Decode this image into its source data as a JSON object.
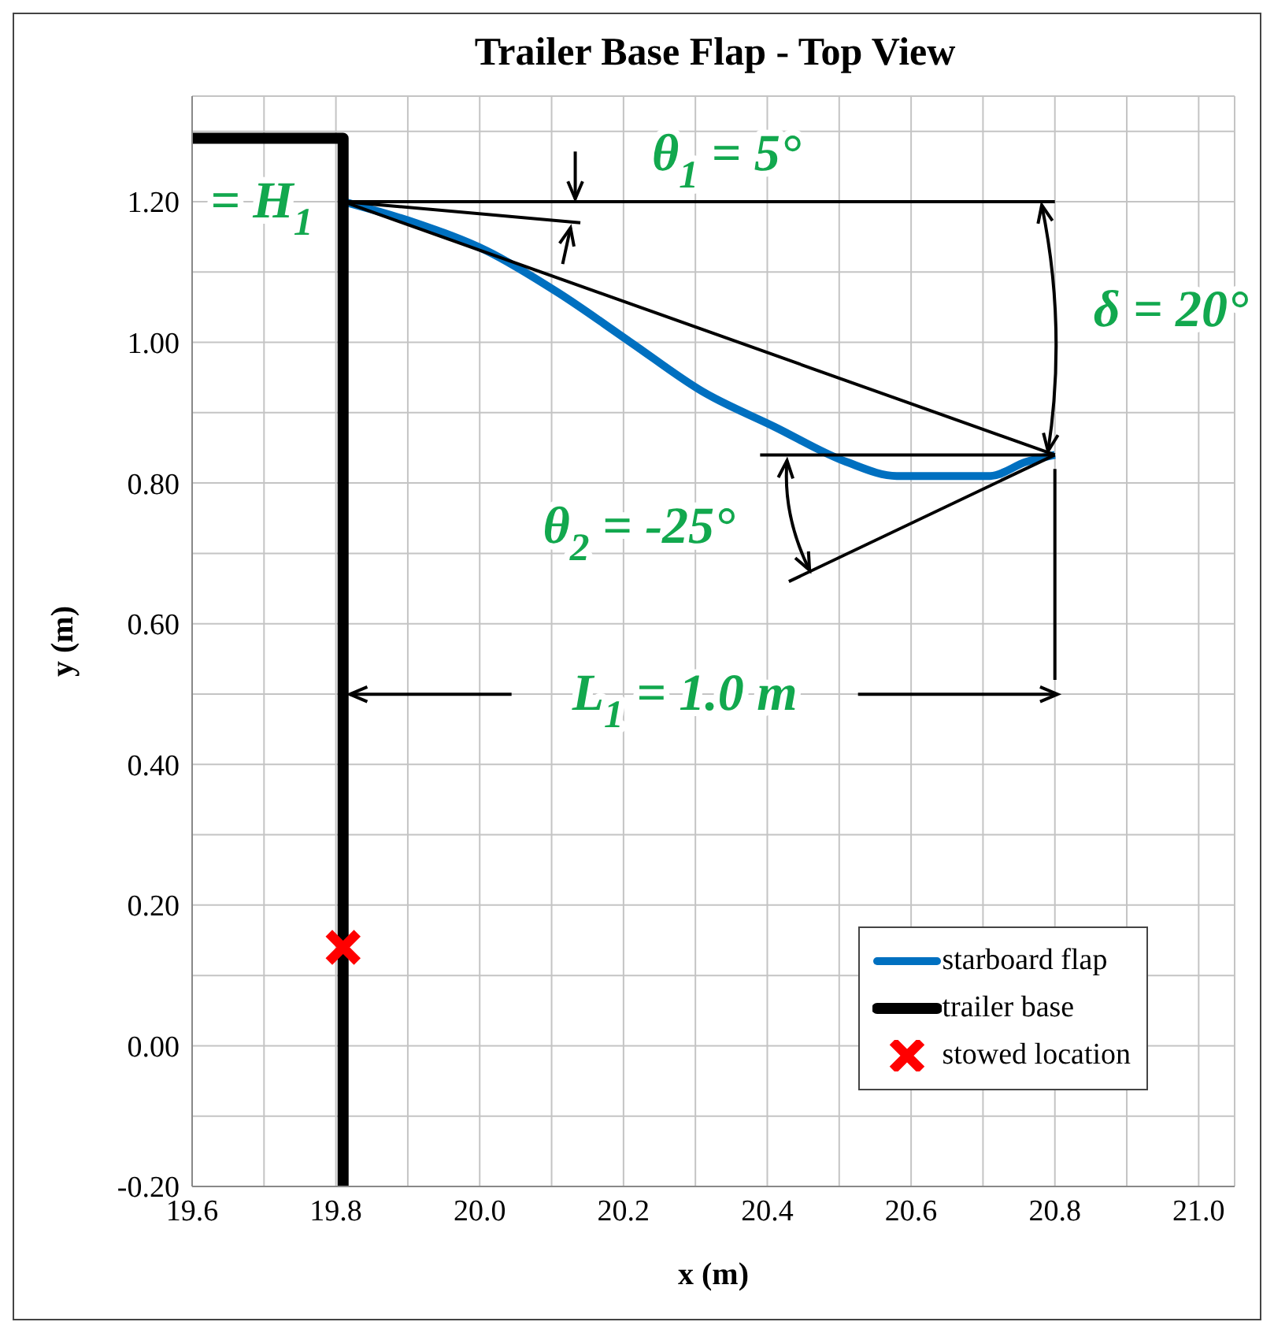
{
  "chart_data": {
    "type": "line",
    "title": "Trailer Base Flap - Top View",
    "xlabel": "x (m)",
    "ylabel": "y (m)",
    "xlim": [
      19.6,
      21.05
    ],
    "ylim": [
      -0.2,
      1.35
    ],
    "xticks": [
      {
        "value": 19.6,
        "label": "19.6"
      },
      {
        "value": 19.7,
        "label": null
      },
      {
        "value": 19.8,
        "label": "19.8"
      },
      {
        "value": 19.9,
        "label": null
      },
      {
        "value": 20.0,
        "label": "20.0"
      },
      {
        "value": 20.1,
        "label": null
      },
      {
        "value": 20.2,
        "label": "20.2"
      },
      {
        "value": 20.3,
        "label": null
      },
      {
        "value": 20.4,
        "label": "20.4"
      },
      {
        "value": 20.5,
        "label": null
      },
      {
        "value": 20.6,
        "label": "20.6"
      },
      {
        "value": 20.7,
        "label": null
      },
      {
        "value": 20.8,
        "label": "20.8"
      },
      {
        "value": 20.9,
        "label": null
      },
      {
        "value": 21.0,
        "label": "21.0"
      }
    ],
    "yticks": [
      {
        "value": -0.2,
        "label": "-0.20"
      },
      {
        "value": -0.1,
        "label": null
      },
      {
        "value": 0,
        "label": "0.00"
      },
      {
        "value": 0.1,
        "label": null
      },
      {
        "value": 0.2,
        "label": "0.20"
      },
      {
        "value": 0.3,
        "label": null
      },
      {
        "value": 0.4,
        "label": "0.40"
      },
      {
        "value": 0.5,
        "label": null
      },
      {
        "value": 0.6,
        "label": "0.60"
      },
      {
        "value": 0.7,
        "label": null
      },
      {
        "value": 0.8,
        "label": "0.80"
      },
      {
        "value": 0.9,
        "label": null
      },
      {
        "value": 1.0,
        "label": "1.00"
      },
      {
        "value": 1.1,
        "label": null
      },
      {
        "value": 1.2,
        "label": "1.20"
      },
      {
        "value": 1.3,
        "label": null
      }
    ],
    "grid": true,
    "legend": "bottom right",
    "series": [
      {
        "name": "starboard flap",
        "color": "#0070c0",
        "marker": "none",
        "x": [
          19.81,
          19.91,
          20.01,
          20.11,
          20.21,
          20.31,
          20.41,
          20.51,
          20.58,
          20.65,
          20.71,
          20.76,
          20.8
        ],
        "values": [
          1.2,
          1.17,
          1.13,
          1.07,
          1.0,
          0.93,
          0.88,
          0.83,
          0.81,
          0.81,
          0.81,
          0.83,
          0.84
        ]
      },
      {
        "name": "trailer base",
        "color": "#000000",
        "marker": "none",
        "x": [
          19.6,
          19.81,
          19.81
        ],
        "values": [
          1.29,
          1.29,
          -0.2
        ]
      },
      {
        "name": "stowed location",
        "type": "scatter",
        "color": "#ff0000",
        "marker": "cross",
        "x": [
          19.81
        ],
        "values": [
          0.14
        ]
      },
      {
        "color": "#000000",
        "marker": "none",
        "x": [
          19.81,
          20.8
        ],
        "values": [
          1.2,
          1.2
        ]
      },
      {
        "color": "#000000",
        "marker": "none",
        "x": [
          19.81,
          20.8
        ],
        "values": [
          1.2,
          0.84
        ]
      },
      {
        "color": "#000000",
        "marker": "none",
        "x": [
          19.81,
          20.14
        ],
        "values": [
          1.2,
          1.17
        ]
      },
      {
        "color": "#000000",
        "marker": "none",
        "x": [
          20.39,
          20.8
        ],
        "values": [
          0.84,
          0.84
        ]
      },
      {
        "color": "#000000",
        "marker": "none",
        "x": [
          20.43,
          20.8
        ],
        "values": [
          0.66,
          0.84
        ]
      },
      {
        "color": "#000000",
        "marker": "none",
        "x": [
          20.8,
          20.8
        ],
        "values": [
          0.82,
          0.52
        ]
      }
    ],
    "annotations": [
      "= H$_{1}$",
      "θ$_{1}$ = 5°",
      "δ = 20°",
      "θ$_{2}$ = -25°",
      "L$_{1}$ = 1.0 m"
    ]
  }
}
